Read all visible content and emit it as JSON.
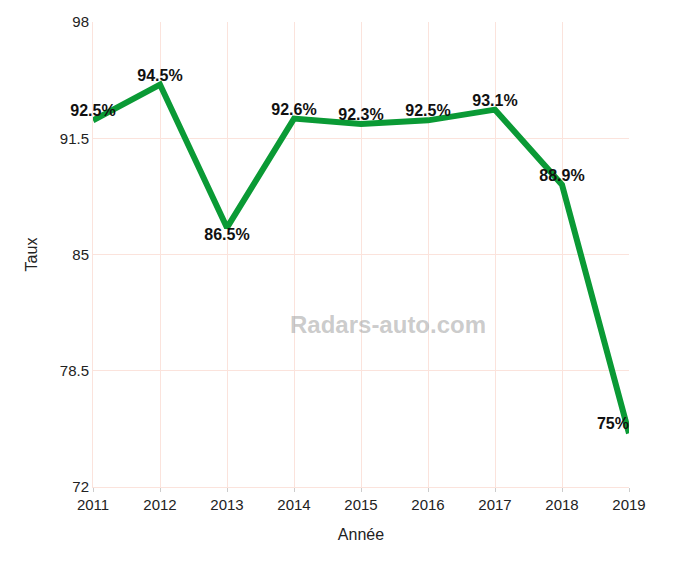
{
  "chart_data": {
    "type": "line",
    "x_label": "Année",
    "y_label": "Taux",
    "x": [
      2011,
      2012,
      2013,
      2014,
      2015,
      2016,
      2017,
      2018,
      2019
    ],
    "values": [
      92.5,
      94.5,
      86.5,
      92.6,
      92.3,
      92.5,
      93.1,
      88.9,
      75
    ],
    "value_labels": [
      "92.5%",
      "94.5%",
      "86.5%",
      "92.6%",
      "92.3%",
      "92.5%",
      "93.1%",
      "88.9%",
      "75%"
    ],
    "data_labels": true,
    "color": "#0a9a35",
    "xlim": [
      2011,
      2019
    ],
    "xticks": [
      2011,
      2012,
      2013,
      2014,
      2015,
      2016,
      2017,
      2018,
      2019
    ],
    "ylim": [
      72,
      98
    ],
    "yticks": [
      72,
      78.5,
      85,
      91.5,
      98
    ],
    "grid": true,
    "annotations": [
      "Radars-auto.com"
    ]
  }
}
